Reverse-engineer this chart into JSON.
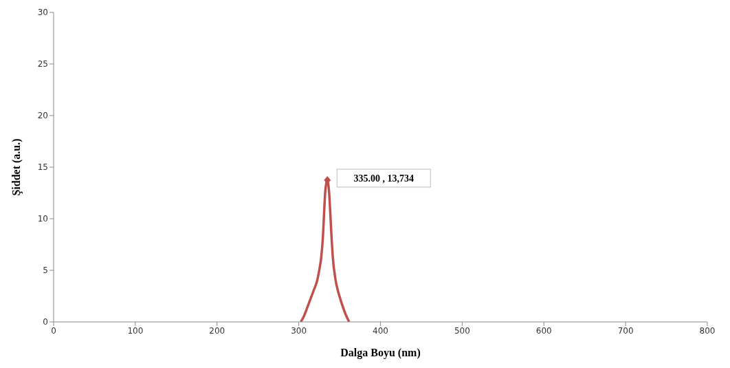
{
  "chart_data": {
    "type": "line",
    "xlabel": "Dalga Boyu (nm)",
    "ylabel": "Şiddet (a.u.)",
    "x": [
      302.5,
      306,
      310,
      313,
      318,
      322.8,
      325.5,
      327.5,
      329.7,
      331,
      332.5,
      333.8,
      335,
      336.2,
      337,
      338.6,
      340,
      341.7,
      345,
      348,
      352,
      357,
      361.7
    ],
    "series": [
      {
        "color": "#c0504d",
        "values": [
          0,
          0.5,
          1.3,
          1.94,
          3.0,
          4.09,
          5.2,
          6.25,
          8.4,
          10.56,
          12.7,
          13.5,
          13.734,
          13.3,
          12.7,
          10.56,
          8.4,
          6.25,
          4.09,
          3.0,
          1.94,
          0.8,
          0
        ]
      }
    ],
    "xlim": [
      0,
      800
    ],
    "xticks": [
      0,
      100,
      200,
      300,
      400,
      500,
      600,
      700,
      800
    ],
    "ylim": [
      0,
      30
    ],
    "yticks": [
      0,
      5,
      10,
      15,
      20,
      25,
      30
    ],
    "grid": false,
    "marker": "none",
    "line_style": "solid",
    "annotations": [
      {
        "text": "335.00 , 13,734",
        "x": 335,
        "y": 13.734
      }
    ]
  }
}
